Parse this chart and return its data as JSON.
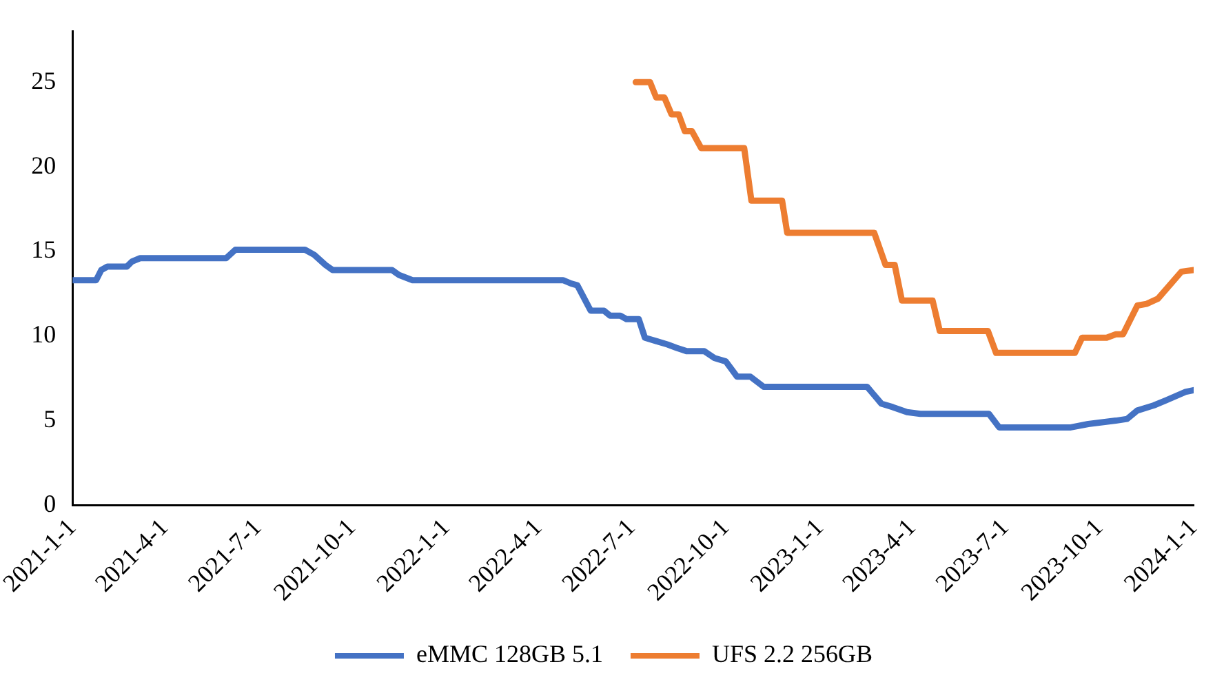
{
  "chart_data": {
    "type": "line",
    "xlim": [
      "2021-01-01",
      "2024-01-01"
    ],
    "xticks": [
      {
        "value": "2021-01-01",
        "label": "2021-1-1"
      },
      {
        "value": "2021-04-01",
        "label": "2021-4-1"
      },
      {
        "value": "2021-07-01",
        "label": "2021-7-1"
      },
      {
        "value": "2021-10-01",
        "label": "2021-10-1"
      },
      {
        "value": "2022-01-01",
        "label": "2022-1-1"
      },
      {
        "value": "2022-04-01",
        "label": "2022-4-1"
      },
      {
        "value": "2022-07-01",
        "label": "2022-7-1"
      },
      {
        "value": "2022-10-01",
        "label": "2022-10-1"
      },
      {
        "value": "2023-01-01",
        "label": "2023-1-1"
      },
      {
        "value": "2023-04-01",
        "label": "2023-4-1"
      },
      {
        "value": "2023-07-01",
        "label": "2023-7-1"
      },
      {
        "value": "2023-10-01",
        "label": "2023-10-1"
      },
      {
        "value": "2024-01-01",
        "label": "2024-1-1"
      }
    ],
    "ylim": [
      0,
      28
    ],
    "yticks": [
      0,
      5,
      10,
      15,
      20,
      25
    ],
    "grid": false,
    "legend": "bottom",
    "marker": "none",
    "line_style": "solid",
    "series": [
      {
        "name": "eMMC 128GB 5.1",
        "color": "#4472c4",
        "x": [
          "2021-01-01",
          "2021-01-24",
          "2021-01-29",
          "2021-02-04",
          "2021-02-23",
          "2021-02-28",
          "2021-03-08",
          "2021-05-31",
          "2021-06-09",
          "2021-08-16",
          "2021-08-25",
          "2021-09-05",
          "2021-09-12",
          "2021-11-09",
          "2021-11-16",
          "2021-11-29",
          "2022-04-25",
          "2022-05-03",
          "2022-05-09",
          "2022-05-22",
          "2022-06-04",
          "2022-06-10",
          "2022-06-20",
          "2022-06-26",
          "2022-07-08",
          "2022-07-14",
          "2022-07-25",
          "2022-08-05",
          "2022-08-14",
          "2022-08-24",
          "2022-09-10",
          "2022-09-20",
          "2022-10-01",
          "2022-10-12",
          "2022-10-25",
          "2022-11-07",
          "2023-02-16",
          "2023-03-02",
          "2023-03-13",
          "2023-03-27",
          "2023-04-09",
          "2023-06-15",
          "2023-06-25",
          "2023-09-03",
          "2023-09-20",
          "2023-10-17",
          "2023-10-28",
          "2023-11-07",
          "2023-11-23",
          "2023-12-05",
          "2023-12-24",
          "2024-01-01"
        ],
        "values": [
          13.3,
          13.3,
          13.9,
          14.1,
          14.1,
          14.4,
          14.6,
          14.6,
          15.1,
          15.1,
          14.8,
          14.2,
          13.9,
          13.9,
          13.6,
          13.3,
          13.3,
          13.1,
          13.0,
          11.5,
          11.5,
          11.2,
          11.2,
          11.0,
          11.0,
          9.9,
          9.7,
          9.5,
          9.3,
          9.1,
          9.1,
          8.7,
          8.5,
          7.6,
          7.6,
          7.0,
          7.0,
          6.0,
          5.8,
          5.5,
          5.4,
          5.4,
          4.6,
          4.6,
          4.8,
          5.0,
          5.1,
          5.6,
          5.9,
          6.2,
          6.7,
          6.8
        ]
      },
      {
        "name": "UFS 2.2 256GB",
        "color": "#ed7d31",
        "x": [
          "2022-07-05",
          "2022-07-19",
          "2022-07-25",
          "2022-08-02",
          "2022-08-09",
          "2022-08-16",
          "2022-08-22",
          "2022-08-29",
          "2022-09-07",
          "2022-10-19",
          "2022-10-26",
          "2022-11-25",
          "2022-11-30",
          "2023-02-23",
          "2023-03-06",
          "2023-03-15",
          "2023-03-22",
          "2023-04-21",
          "2023-04-28",
          "2023-06-14",
          "2023-06-22",
          "2023-09-07",
          "2023-09-14",
          "2023-10-08",
          "2023-10-17",
          "2023-10-24",
          "2023-11-07",
          "2023-11-16",
          "2023-11-27",
          "2023-12-20",
          "2024-01-01"
        ],
        "values": [
          25.0,
          25.0,
          24.1,
          24.1,
          23.1,
          23.1,
          22.1,
          22.1,
          21.1,
          21.1,
          18.0,
          18.0,
          16.1,
          16.1,
          14.2,
          14.2,
          12.1,
          12.1,
          10.3,
          10.3,
          9.0,
          9.0,
          9.9,
          9.9,
          10.1,
          10.1,
          11.8,
          11.9,
          12.2,
          13.8,
          13.9
        ]
      }
    ]
  }
}
